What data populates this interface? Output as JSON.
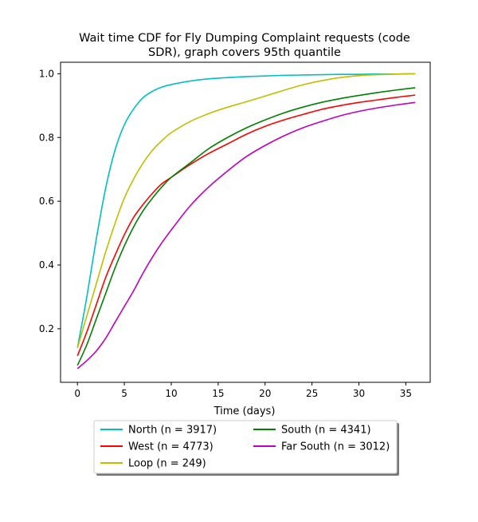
{
  "colors": {
    "north": "#00bfbf",
    "west": "#ff0000",
    "loop": "#bfbf00",
    "south": "#008000",
    "far_south": "#bf00bf"
  },
  "chart_data": {
    "type": "line",
    "title": "Wait time CDF for Fly Dumping Complaint  requests (code SDR), graph covers 95th quantile",
    "title_lines": [
      "Wait time CDF for Fly Dumping Complaint  requests (code",
      "SDR), graph covers 95th quantile"
    ],
    "xlabel": "Time (days)",
    "ylabel": "",
    "xlim": [
      -1.8,
      37.6
    ],
    "ylim": [
      0.032,
      1.036
    ],
    "xticks": [
      0,
      5,
      10,
      15,
      20,
      25,
      30,
      35
    ],
    "yticks": [
      0.2,
      0.4,
      0.6,
      0.8,
      1.0
    ],
    "ytick_labels": [
      "0.2",
      "0.4",
      "0.6",
      "0.8",
      "1.0"
    ],
    "grid": false,
    "legend_position": "below plot, 2 columns",
    "x": [
      0,
      1,
      2,
      3,
      4,
      5,
      6,
      7,
      8,
      9,
      10,
      12,
      14,
      16,
      18,
      20,
      22,
      24,
      26,
      28,
      30,
      32,
      34,
      36
    ],
    "series": [
      {
        "name": "North (n = 3917)",
        "color_key": "north",
        "values": [
          0.14,
          0.3,
          0.48,
          0.64,
          0.76,
          0.84,
          0.89,
          0.925,
          0.945,
          0.958,
          0.966,
          0.977,
          0.984,
          0.988,
          0.991,
          0.993,
          0.995,
          0.996,
          0.997,
          0.998,
          0.998,
          0.999,
          0.999,
          1.0
        ]
      },
      {
        "name": "West (n = 4773)",
        "color_key": "west",
        "values": [
          0.115,
          0.19,
          0.275,
          0.36,
          0.43,
          0.495,
          0.55,
          0.59,
          0.625,
          0.655,
          0.675,
          0.715,
          0.75,
          0.78,
          0.81,
          0.835,
          0.855,
          0.872,
          0.888,
          0.9,
          0.91,
          0.918,
          0.926,
          0.933
        ]
      },
      {
        "name": "Loop (n = 249)",
        "color_key": "loop",
        "values": [
          0.14,
          0.24,
          0.34,
          0.44,
          0.53,
          0.61,
          0.67,
          0.72,
          0.76,
          0.79,
          0.815,
          0.85,
          0.875,
          0.895,
          0.912,
          0.93,
          0.948,
          0.965,
          0.978,
          0.988,
          0.994,
          0.997,
          0.999,
          1.0
        ]
      },
      {
        "name": "South (n = 4341)",
        "color_key": "south",
        "values": [
          0.085,
          0.15,
          0.23,
          0.31,
          0.39,
          0.46,
          0.52,
          0.57,
          0.61,
          0.645,
          0.675,
          0.72,
          0.765,
          0.8,
          0.83,
          0.855,
          0.877,
          0.895,
          0.91,
          0.922,
          0.932,
          0.941,
          0.949,
          0.956
        ]
      },
      {
        "name": "Far South (n = 3012)",
        "color_key": "far_south",
        "values": [
          0.075,
          0.1,
          0.13,
          0.17,
          0.22,
          0.27,
          0.32,
          0.375,
          0.425,
          0.47,
          0.51,
          0.585,
          0.645,
          0.695,
          0.74,
          0.775,
          0.805,
          0.83,
          0.85,
          0.868,
          0.882,
          0.893,
          0.902,
          0.91
        ]
      }
    ],
    "legend_layout": [
      [
        "north",
        "south"
      ],
      [
        "west",
        "far_south"
      ],
      [
        "loop"
      ]
    ]
  }
}
